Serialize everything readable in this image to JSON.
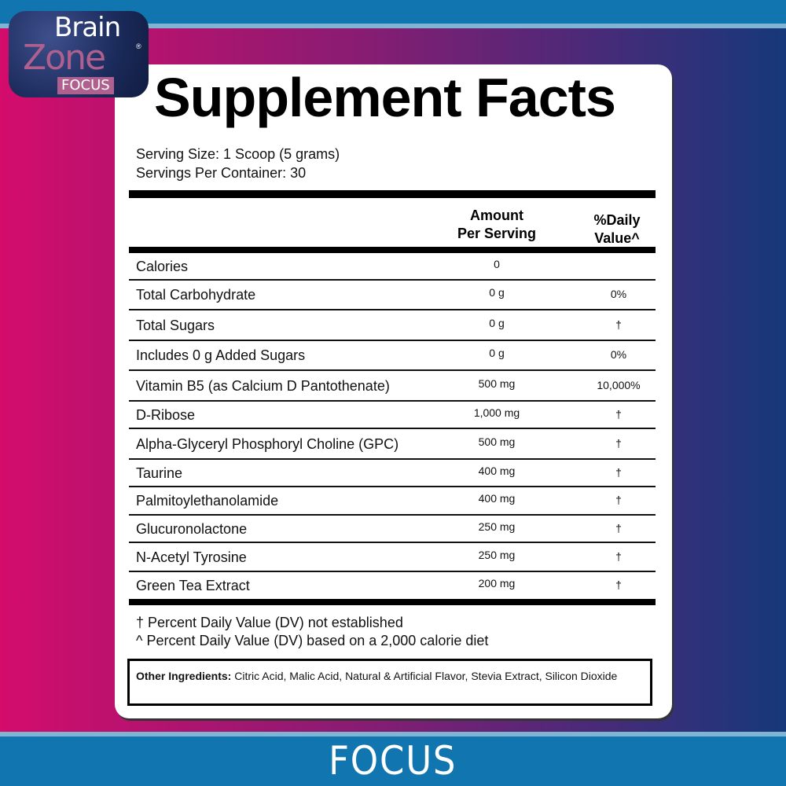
{
  "brand": {
    "line1": "Brain",
    "line2": "Zone",
    "badge": "FOCUS",
    "reg": "®"
  },
  "banner": "FOCUS",
  "title": "Supplement Facts",
  "serving_size": "Serving Size: 1 Scoop (5 grams)",
  "servings_per_container": "Servings Per Container: 30",
  "columns": {
    "amount": [
      "Amount",
      "Per Serving"
    ],
    "dv": [
      "%Daily",
      "Value^"
    ]
  },
  "rows": [
    {
      "name": "Calories",
      "amount": "0",
      "dv": ""
    },
    {
      "name": "Total Carbohydrate",
      "amount": "0 g",
      "dv": "0%"
    },
    {
      "name": "Total Sugars",
      "amount": "0 g",
      "dv": "†"
    },
    {
      "name": "Includes 0 g Added Sugars",
      "amount": "0 g",
      "dv": "0%"
    },
    {
      "name": "Vitamin B5 (as Calcium D Pantothenate)",
      "amount": "500 mg",
      "dv": "10,000%"
    },
    {
      "name": "D-Ribose",
      "amount": "1,000 mg",
      "dv": "†"
    },
    {
      "name": "Alpha-Glyceryl Phosphoryl Choline (GPC)",
      "amount": "500 mg",
      "dv": "†"
    },
    {
      "name": "Taurine",
      "amount": "400 mg",
      "dv": "†"
    },
    {
      "name": "Palmitoylethanolamide",
      "amount": "400 mg",
      "dv": "†"
    },
    {
      "name": "Glucuronolactone",
      "amount": "250 mg",
      "dv": "†"
    },
    {
      "name": "N-Acetyl Tyrosine",
      "amount": "250 mg",
      "dv": "†"
    },
    {
      "name": "Green Tea Extract",
      "amount": "200 mg",
      "dv": "†"
    }
  ],
  "footnotes": [
    "† Percent Daily Value (DV) not established",
    "^ Percent Daily Value (DV) based on a 2,000 calorie diet"
  ],
  "other_ingredients": {
    "label": "Other Ingredients:",
    "text": " Citric Acid, Malic Acid, Natural & Artificial Flavor, Stevia Extract, Silicon Dioxide"
  }
}
